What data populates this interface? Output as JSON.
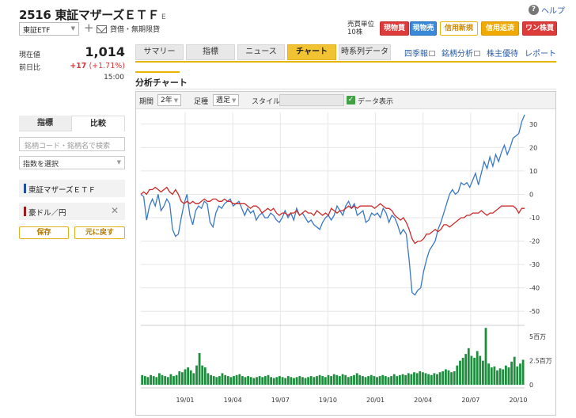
{
  "header": {
    "title": "2516 東証マザーズＥＴＦ",
    "title_suffix": "E",
    "help": "ヘルプ",
    "market": "東証ETF",
    "mail": "貸借・無期限貸",
    "unit_label": "売買単位",
    "unit_value": "10株",
    "buttons": {
      "cash_buy": "現物買",
      "cash_sell": "現物売",
      "margin_new": "信用新規",
      "margin_close": "信用返済",
      "one_share": "ワン株買"
    }
  },
  "quote": {
    "price_label": "現在値",
    "price": "1,014",
    "change_label": "前日比",
    "change": "+17",
    "change_pct": "(+1.71%)",
    "time": "15:00"
  },
  "tabs": [
    "サマリー",
    "指標",
    "ニュース",
    "チャート",
    "時系列データ"
  ],
  "active_tab": "チャート",
  "links": [
    "四季報",
    "銘柄分析",
    "株主優待",
    "レポート"
  ],
  "section_title": "分析チャート",
  "toolbar": {
    "period_label": "期間",
    "period_value": "2年",
    "candle_label": "足種",
    "candle_value": "週足",
    "style_label": "スタイル",
    "data_display": "データ表示"
  },
  "sidebar": {
    "tab_indicator": "指標",
    "tab_compare": "比較",
    "search_placeholder": "銘柄コード・銘柄名で検索",
    "index_select": "指数を選択",
    "items": [
      {
        "label": "東証マザーズＥＴＦ",
        "color": "#1f4e9c"
      },
      {
        "label": "豪ドル／円",
        "color": "#9b1c1c"
      }
    ],
    "save": "保存",
    "reset": "元に戻す"
  },
  "colors": {
    "etf_line": "#3a78c4",
    "fx_line": "#cc2b2b",
    "volume_bar": "#1e8e3e",
    "accent": "#f1c232"
  },
  "chart_data": {
    "type": "line",
    "ylabel_unit": "%",
    "ylim": [
      -55,
      35
    ],
    "yticks": [
      "30",
      "20",
      "10",
      "0",
      "-10",
      "-20",
      "-30",
      "-40",
      "-50"
    ],
    "x_tick_labels": [
      "19/01",
      "19/04",
      "19/07",
      "19/10",
      "20/01",
      "20/04",
      "20/07",
      "20/10"
    ],
    "series": [
      {
        "name": "東証マザーズＥＴＦ",
        "values": [
          0,
          -1,
          -11,
          -5,
          -2,
          -5,
          0,
          -7,
          -5,
          -2,
          -4,
          -15,
          -18,
          -17,
          -10,
          -4,
          0,
          -9,
          -13,
          -7,
          -5,
          -6,
          -3,
          -4,
          -12,
          -14,
          -8,
          -5,
          -6,
          -4,
          -3,
          -2,
          -5,
          -4,
          -3,
          -6,
          -9,
          -6,
          -8,
          -7,
          -11,
          -9,
          -8,
          -10,
          -10,
          -8,
          -9,
          -11,
          -12,
          -10,
          -7,
          -10,
          -8,
          -11,
          -6,
          -9,
          -8,
          -10,
          -12,
          -11,
          -13,
          -14,
          -15,
          -12,
          -10,
          -9,
          -11,
          -9,
          -5,
          -7,
          -9,
          -5,
          -3,
          -6,
          -4,
          -9,
          -8,
          -7,
          -12,
          -11,
          -8,
          -9,
          -8,
          -10,
          -6,
          -8,
          -12,
          -9,
          -10,
          -13,
          -17,
          -15,
          -17,
          -28,
          -42,
          -43,
          -41,
          -40,
          -33,
          -28,
          -24,
          -22,
          -20,
          -15,
          -12,
          -8,
          -4,
          0,
          2,
          0,
          1,
          5,
          4,
          5,
          3,
          6,
          9,
          4,
          9,
          14,
          11,
          16,
          12,
          17,
          14,
          18,
          21,
          17,
          20,
          24,
          25,
          26,
          31,
          34
        ]
      },
      {
        "name": "豪ドル／円",
        "values": [
          0,
          1,
          0,
          2,
          2,
          3,
          2,
          1,
          2,
          3,
          1,
          0,
          2,
          0,
          -3,
          -4,
          -3,
          -4,
          -3,
          -4,
          -4,
          -3,
          -2,
          -3,
          -3,
          -2,
          -2,
          -3,
          -3,
          -2,
          -3,
          -3,
          -4,
          -4,
          -4,
          -4,
          -4,
          -5,
          -6,
          -5,
          -5,
          -6,
          -8,
          -7,
          -6,
          -7,
          -6,
          -8,
          -9,
          -8,
          -8,
          -9,
          -8,
          -8,
          -7,
          -9,
          -8,
          -7,
          -8,
          -8,
          -9,
          -7,
          -8,
          -9,
          -8,
          -9,
          -6,
          -7,
          -8,
          -7,
          -7,
          -6,
          -5,
          -6,
          -5,
          -6,
          -5,
          -5,
          -5,
          -5,
          -5,
          -6,
          -5,
          -4,
          -5,
          -6,
          -6,
          -7,
          -9,
          -10,
          -11,
          -10,
          -12,
          -15,
          -19,
          -21,
          -20,
          -20,
          -19,
          -17,
          -17,
          -16,
          -15,
          -16,
          -15,
          -13,
          -13,
          -14,
          -13,
          -12,
          -11,
          -10,
          -10,
          -9,
          -9,
          -8,
          -8,
          -8,
          -7,
          -8,
          -9,
          -8,
          -8,
          -7,
          -6,
          -5,
          -5,
          -5,
          -5,
          -5,
          -6,
          -8,
          -6,
          -6
        ]
      }
    ],
    "volume": {
      "yticks": [
        "5百万",
        "2.5百万",
        "0"
      ],
      "ylim": [
        0,
        6
      ],
      "values": [
        1.0,
        0.9,
        0.8,
        1.0,
        0.9,
        0.8,
        1.2,
        1.0,
        0.9,
        0.8,
        1.1,
        0.9,
        1.0,
        1.4,
        1.3,
        1.6,
        1.8,
        1.5,
        1.2,
        2.0,
        3.3,
        2.0,
        1.8,
        1.2,
        1.0,
        0.9,
        0.8,
        0.9,
        1.2,
        1.0,
        0.9,
        0.8,
        0.9,
        1.0,
        1.1,
        0.9,
        0.8,
        0.9,
        0.8,
        0.7,
        0.8,
        0.9,
        0.8,
        0.9,
        1.0,
        0.8,
        0.7,
        0.8,
        0.9,
        0.8,
        0.7,
        0.9,
        0.8,
        0.7,
        0.8,
        0.9,
        0.8,
        0.7,
        0.8,
        0.9,
        0.8,
        0.9,
        1.0,
        0.9,
        0.8,
        1.0,
        0.9,
        1.1,
        1.0,
        0.9,
        1.1,
        1.0,
        0.8,
        0.9,
        1.0,
        1.2,
        1.0,
        0.9,
        0.8,
        0.9,
        1.0,
        0.9,
        0.8,
        0.9,
        1.0,
        0.9,
        0.8,
        0.9,
        1.1,
        0.9,
        1.0,
        1.1,
        1.0,
        1.2,
        1.1,
        1.3,
        1.2,
        1.4,
        1.3,
        1.2,
        1.1,
        1.0,
        1.2,
        1.1,
        1.3,
        1.4,
        1.6,
        1.5,
        1.3,
        1.4,
        2.0,
        2.5,
        2.8,
        3.2,
        3.8,
        3.0,
        2.8,
        3.5,
        3.0,
        2.5,
        5.9,
        2.2,
        1.8,
        1.9,
        1.5,
        1.7,
        1.6,
        2.0,
        1.8,
        2.4,
        2.9,
        1.9,
        2.2,
        2.6
      ]
    }
  }
}
